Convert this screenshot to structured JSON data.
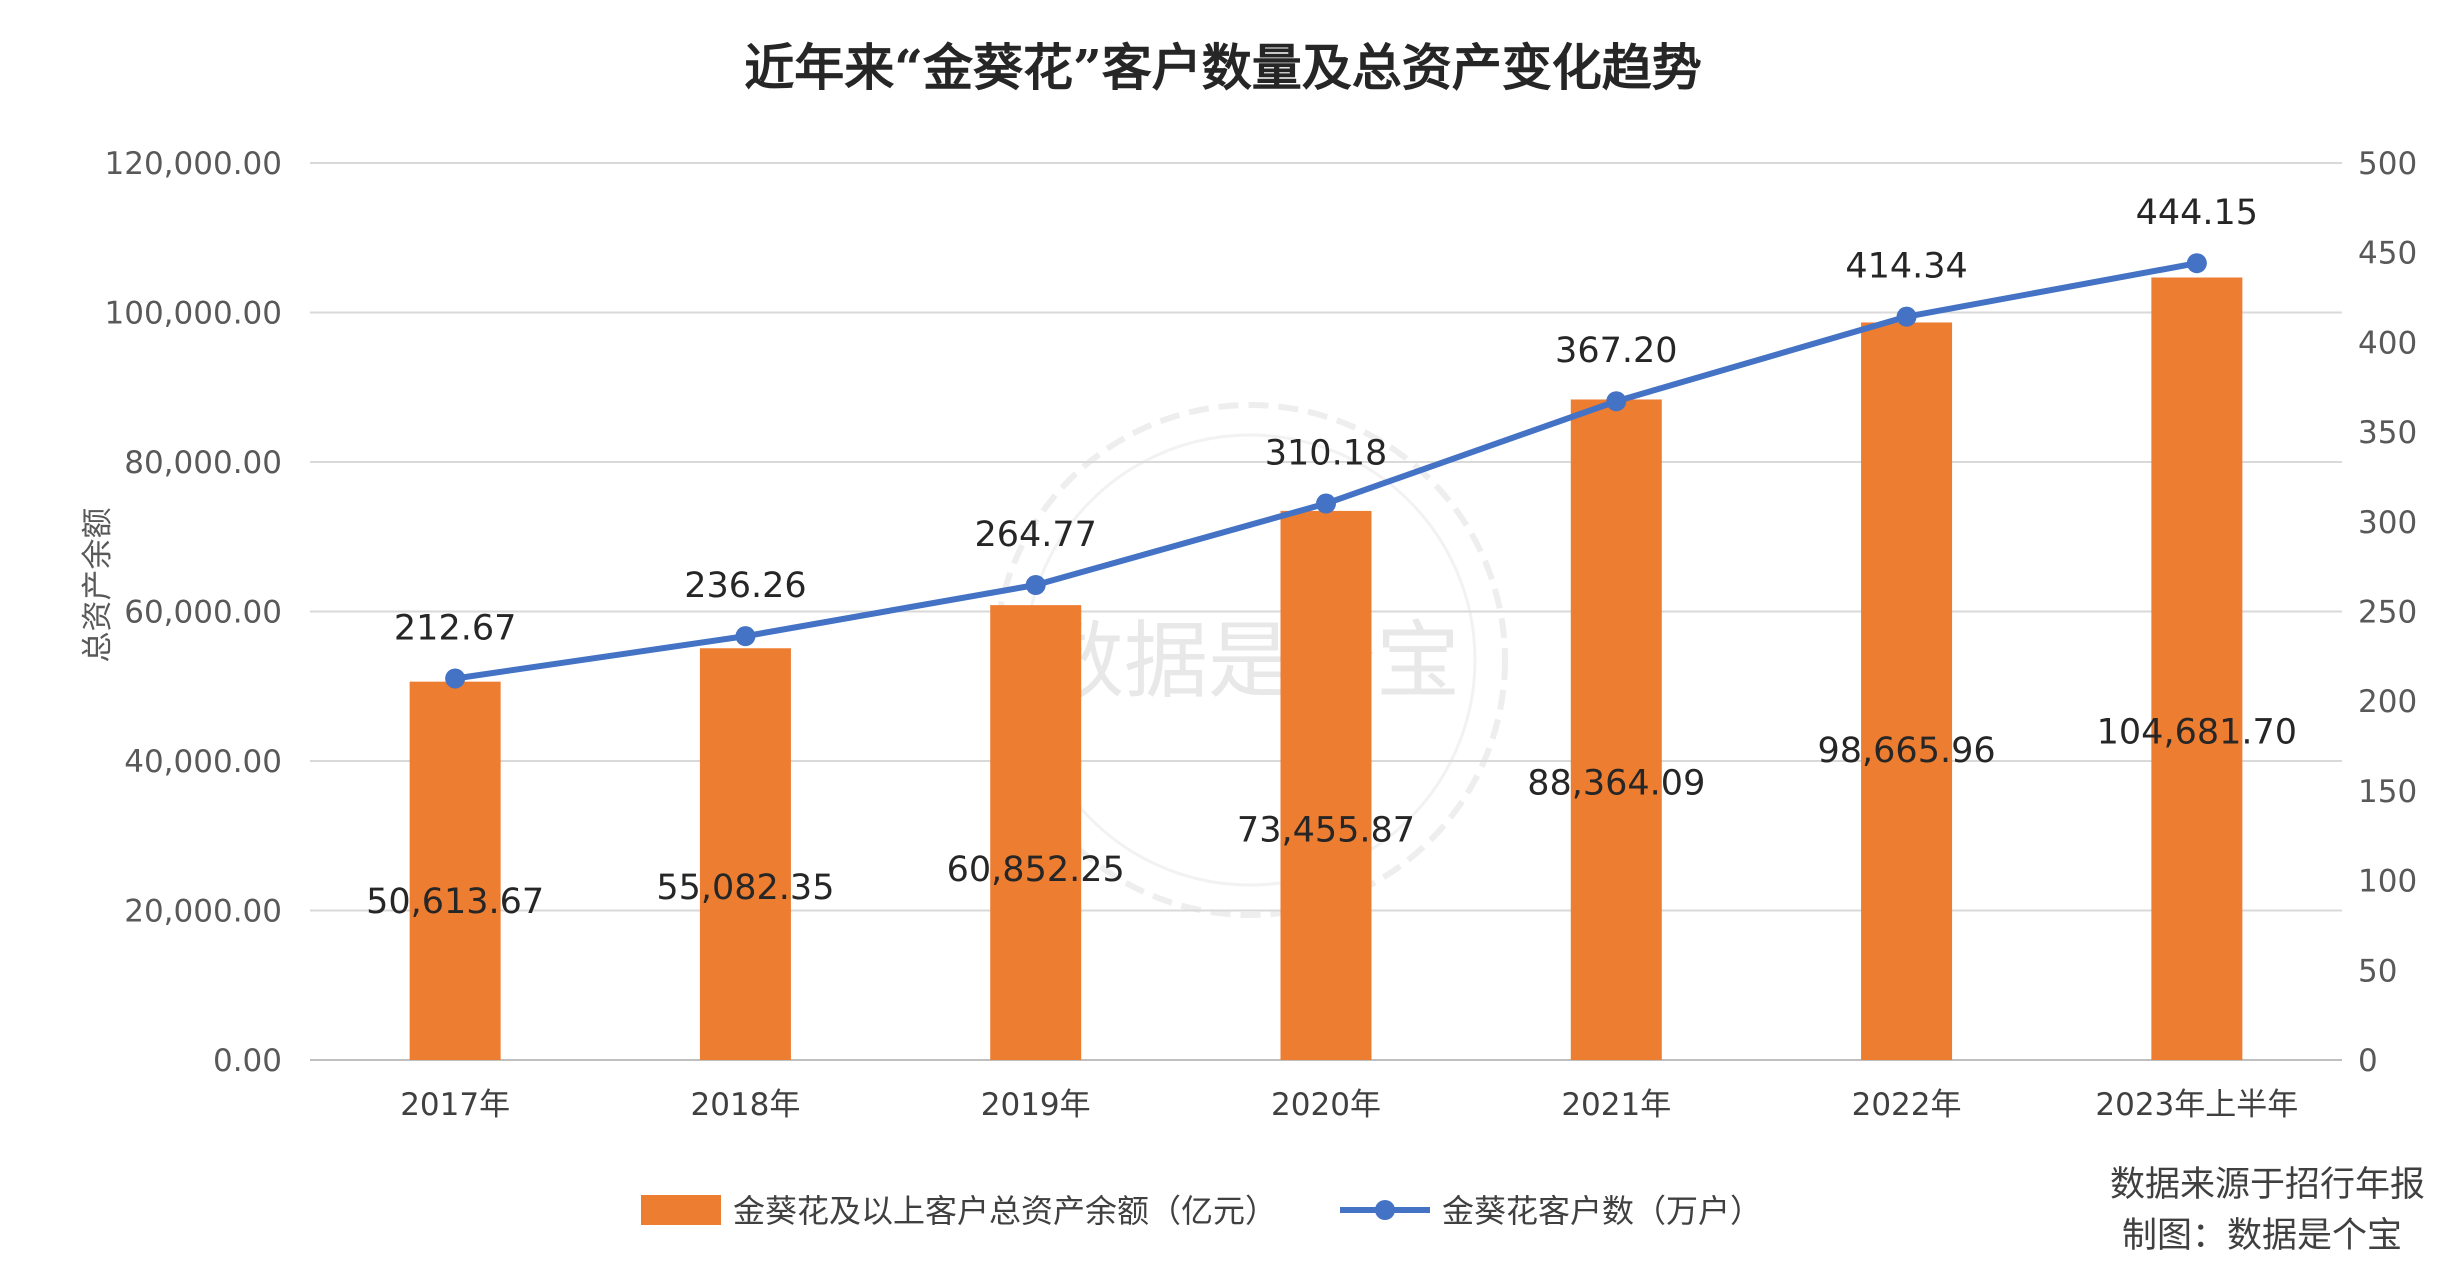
{
  "chart_data": {
    "type": "bar+line",
    "title": "近年来“金葵花”客户数量及总资产变化趋势",
    "categories": [
      "2017年",
      "2018年",
      "2019年",
      "2020年",
      "2021年",
      "2022年",
      "2023年上半年"
    ],
    "series": [
      {
        "name": "金葵花及以上客户总资产余额（亿元）",
        "type": "bar",
        "axis": "left",
        "color": "#ED7D31",
        "values": [
          50613.67,
          55082.35,
          60852.25,
          73455.87,
          88364.09,
          98665.96,
          104681.7
        ],
        "labels": [
          "50,613.67",
          "55,082.35",
          "60,852.25",
          "73,455.87",
          "88,364.09",
          "98,665.96",
          "104,681.70"
        ]
      },
      {
        "name": "金葵花客户数（万户）",
        "type": "line",
        "axis": "right",
        "color": "#4472C4",
        "values": [
          212.67,
          236.26,
          264.77,
          310.18,
          367.2,
          414.34,
          444.15
        ],
        "labels": [
          "212.67",
          "236.26",
          "264.77",
          "310.18",
          "367.20",
          "414.34",
          "444.15"
        ]
      }
    ],
    "ylabel": "总资产余额",
    "ylim": [
      0,
      120000
    ],
    "y_ticks": [
      "0.00",
      "20,000.00",
      "40,000.00",
      "60,000.00",
      "80,000.00",
      "100,000.00",
      "120,000.00"
    ],
    "y2lim": [
      0,
      500
    ],
    "y2_ticks": [
      "0",
      "50",
      "100",
      "150",
      "200",
      "250",
      "300",
      "350",
      "400",
      "450",
      "500"
    ],
    "grid": true,
    "legend_position": "bottom"
  },
  "source": {
    "line1": "数据来源于招行年报",
    "line2": "制图：数据是个宝"
  },
  "watermark": "数据是个宝"
}
